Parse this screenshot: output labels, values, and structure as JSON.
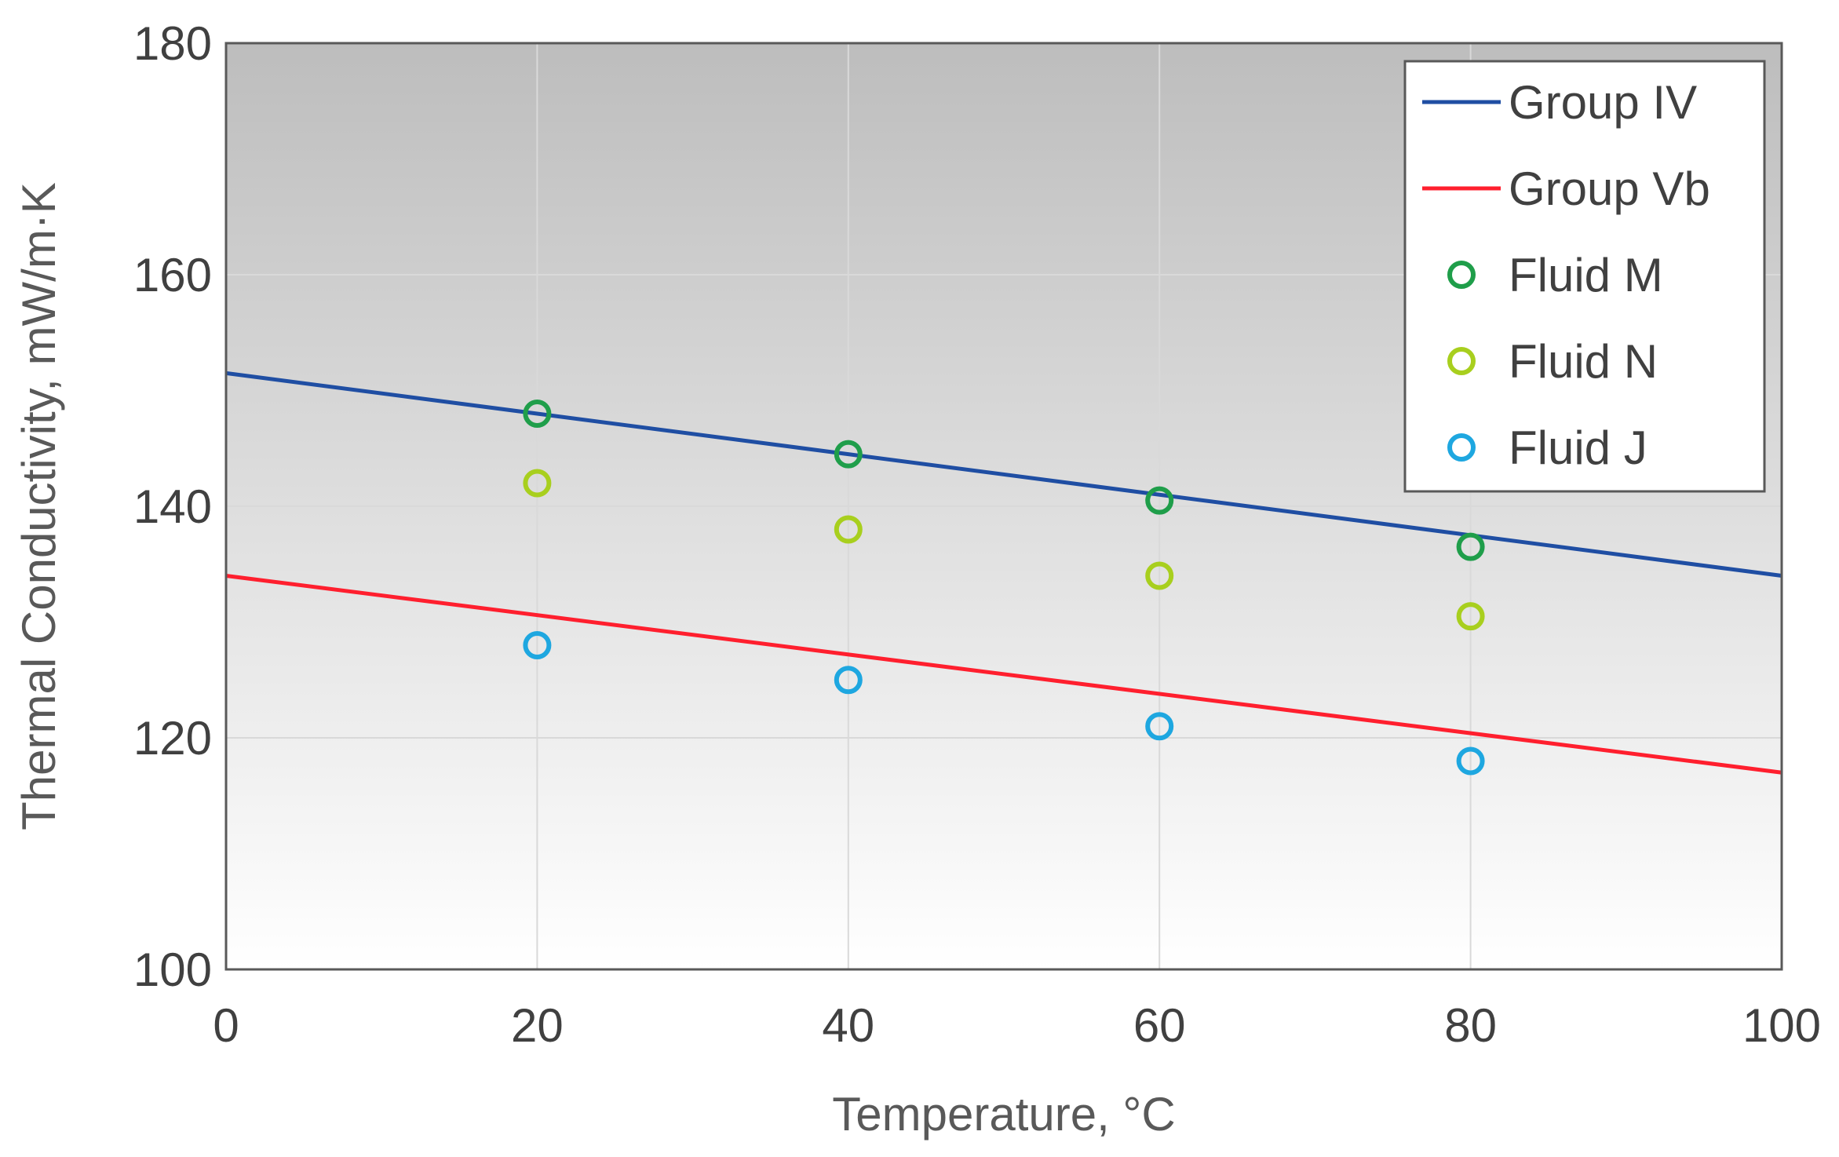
{
  "chart_data": {
    "type": "line",
    "title": "",
    "xlabel": "Temperature, °C",
    "ylabel": "Thermal Conductivity, mW/m·K",
    "xlim": [
      0,
      100
    ],
    "ylim": [
      100,
      180
    ],
    "x_ticks": [
      "0",
      "20",
      "40",
      "60",
      "80",
      "100"
    ],
    "y_ticks": [
      "100",
      "120",
      "140",
      "160",
      "180"
    ],
    "grid": true,
    "legend_position": "top-right",
    "series": [
      {
        "name": "Group IV",
        "kind": "line",
        "color": "#1f4ea3",
        "x": [
          0,
          100
        ],
        "y": [
          151.5,
          134.0
        ]
      },
      {
        "name": "Group Vb",
        "kind": "line",
        "color": "#ff1f2e",
        "x": [
          0,
          100
        ],
        "y": [
          134.0,
          117.0
        ]
      },
      {
        "name": "Fluid M",
        "kind": "scatter",
        "color": "#1f9e4a",
        "x": [
          20,
          40,
          60,
          80
        ],
        "y": [
          148.0,
          144.5,
          140.5,
          136.5
        ]
      },
      {
        "name": "Fluid N",
        "kind": "scatter",
        "color": "#a8cf1e",
        "x": [
          20,
          40,
          60,
          80
        ],
        "y": [
          142.0,
          138.0,
          134.0,
          130.5
        ]
      },
      {
        "name": "Fluid J",
        "kind": "scatter",
        "color": "#1ea7e0",
        "x": [
          20,
          40,
          60,
          80
        ],
        "y": [
          128.0,
          125.0,
          121.0,
          118.0
        ]
      }
    ]
  }
}
